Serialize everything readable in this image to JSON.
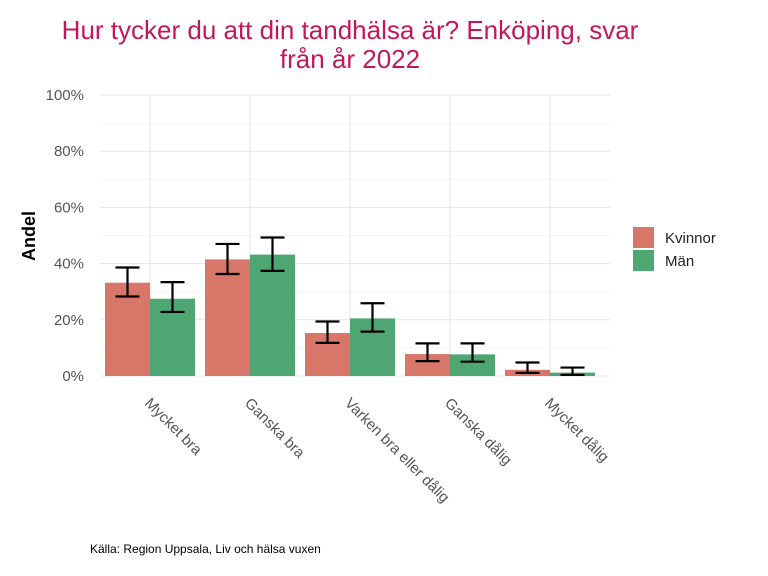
{
  "chart_data": {
    "type": "bar",
    "title": "Hur tycker du att din tandhälsa är? Enköping, svar från år 2022",
    "title_lines": [
      "Hur tycker du att din tandhälsa är? Enköping, svar",
      "från år 2022"
    ],
    "xlabel": "",
    "ylabel": "Andel",
    "ylim": [
      0,
      100
    ],
    "yticks": [
      0,
      20,
      40,
      60,
      80,
      100
    ],
    "ytick_labels": [
      "0%",
      "20%",
      "40%",
      "60%",
      "80%",
      "100%"
    ],
    "categories": [
      "Mycket bra",
      "Ganska bra",
      "Varken bra eller dålig",
      "Ganska dålig",
      "Mycket dålig"
    ],
    "series": [
      {
        "name": "Kvinnor",
        "color": "#d9766a",
        "values": [
          33.2,
          41.5,
          15.3,
          7.8,
          2.2
        ],
        "error_low": [
          28.3,
          36.3,
          11.8,
          5.3,
          1.1
        ],
        "error_high": [
          38.6,
          47.0,
          19.4,
          11.6,
          4.8
        ]
      },
      {
        "name": "Män",
        "color": "#4ea672",
        "values": [
          27.5,
          43.2,
          20.5,
          7.7,
          1.2
        ],
        "error_low": [
          22.8,
          37.4,
          15.8,
          5.1,
          0.4
        ],
        "error_high": [
          33.4,
          49.3,
          25.9,
          11.6,
          3.0
        ]
      }
    ],
    "grid": true,
    "legend_position": "right",
    "caption": "Källa: Region Uppsala, Liv och hälsa vuxen"
  }
}
